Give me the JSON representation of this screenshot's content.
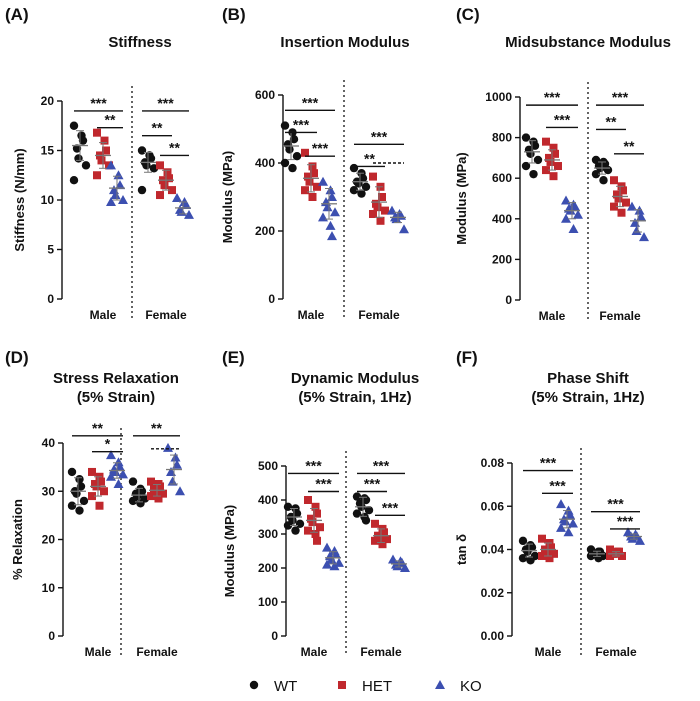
{
  "legend": {
    "items": [
      {
        "label": "WT",
        "color": "#111111",
        "shape": "circle"
      },
      {
        "label": "HET",
        "color": "#c0282d",
        "shape": "square"
      },
      {
        "label": "KO",
        "color": "#3c4fb0",
        "shape": "triangle"
      }
    ]
  },
  "chart_data": [
    {
      "type": "scatter",
      "letter": "(A)",
      "title": [
        "Stiffness"
      ],
      "ylabel": "Stiffness  (N/mm)",
      "ylim": [
        0,
        20
      ],
      "yticks": [
        0,
        5,
        10,
        15,
        20
      ],
      "ytick_labels": [
        "0",
        "5",
        "10",
        "15",
        "20"
      ],
      "groups": [
        {
          "label": "Male",
          "series": [
            {
              "name": "WT",
              "values": [
                17.5,
                16.5,
                16.0,
                15.2,
                14.2,
                13.5,
                12.0
              ],
              "mean": 15.5,
              "sd": 1.5
            },
            {
              "name": "HET",
              "values": [
                16.8,
                16.0,
                15.0,
                14.5,
                14.0,
                13.5,
                12.5
              ],
              "mean": 14.5,
              "sd": 1.3
            },
            {
              "name": "KO",
              "values": [
                13.5,
                12.5,
                11.5,
                11.0,
                10.5,
                10.0,
                9.8
              ],
              "mean": 11.2,
              "sd": 1.2
            }
          ]
        },
        {
          "label": "Female",
          "series": [
            {
              "name": "WT",
              "values": [
                15.0,
                14.5,
                14.2,
                13.8,
                13.5,
                13.2,
                11.0
              ],
              "mean": 13.8,
              "sd": 1.0
            },
            {
              "name": "HET",
              "values": [
                13.5,
                12.8,
                12.2,
                12.0,
                11.5,
                11.0,
                10.5
              ],
              "mean": 12.0,
              "sd": 1.0
            },
            {
              "name": "KO",
              "values": [
                10.2,
                9.8,
                9.5,
                9.0,
                8.8,
                8.5
              ],
              "mean": 9.2,
              "sd": 0.6
            }
          ]
        }
      ],
      "significance": [
        {
          "group": 0,
          "from": 0,
          "to": 2,
          "label": "***",
          "y": 19.0
        },
        {
          "group": 0,
          "from": 1,
          "to": 2,
          "label": "**",
          "y": 17.3
        },
        {
          "group": 1,
          "from": 0,
          "to": 2,
          "label": "***",
          "y": 19.0
        },
        {
          "group": 1,
          "from": 0,
          "to": 1,
          "label": "**",
          "y": 16.5
        },
        {
          "group": 1,
          "from": 1,
          "to": 2,
          "label": "**",
          "y": 14.5
        }
      ]
    },
    {
      "type": "scatter",
      "letter": "(B)",
      "title": [
        "Insertion Modulus"
      ],
      "ylabel": "Modulus  (MPa)",
      "ylim": [
        0,
        600
      ],
      "yticks": [
        0,
        200,
        400,
        600
      ],
      "ytick_labels": [
        "0",
        "200",
        "400",
        "600"
      ],
      "groups": [
        {
          "label": "Male",
          "series": [
            {
              "name": "WT",
              "values": [
                510,
                490,
                470,
                455,
                440,
                420,
                400,
                385
              ],
              "mean": 450,
              "sd": 40
            },
            {
              "name": "HET",
              "values": [
                430,
                390,
                370,
                360,
                345,
                330,
                320,
                300
              ],
              "mean": 355,
              "sd": 40
            },
            {
              "name": "KO",
              "values": [
                345,
                320,
                300,
                285,
                270,
                255,
                240,
                215,
                185
              ],
              "mean": 280,
              "sd": 45
            }
          ]
        },
        {
          "label": "Female",
          "series": [
            {
              "name": "WT",
              "values": [
                385,
                370,
                355,
                345,
                340,
                330,
                320,
                310
              ],
              "mean": 345,
              "sd": 25
            },
            {
              "name": "HET",
              "values": [
                360,
                330,
                300,
                280,
                270,
                260,
                250,
                230
              ],
              "mean": 285,
              "sd": 45
            },
            {
              "name": "KO",
              "values": [
                260,
                250,
                245,
                240,
                235,
                205
              ],
              "mean": 240,
              "sd": 15
            }
          ]
        }
      ],
      "significance": [
        {
          "group": 0,
          "from": 0,
          "to": 2,
          "label": "***",
          "y": 555
        },
        {
          "group": 0,
          "from": 0,
          "to": 1,
          "label": "***",
          "y": 490
        },
        {
          "group": 0,
          "from": 1,
          "to": 2,
          "label": "***",
          "y": 420
        },
        {
          "group": 1,
          "from": 0,
          "to": 2,
          "label": "***",
          "y": 455
        },
        {
          "group": 1,
          "from": 0,
          "to": 1,
          "label": "**",
          "y": 390
        },
        {
          "group": 1,
          "from": 1,
          "to": 2,
          "label": "",
          "y": 400,
          "dashed": true
        }
      ]
    },
    {
      "type": "scatter",
      "letter": "(C)",
      "title": [
        "Midsubstance Modulus"
      ],
      "ylabel": "Modulus  (MPa)",
      "ylim": [
        0,
        1000
      ],
      "yticks": [
        0,
        200,
        400,
        600,
        800,
        1000
      ],
      "ytick_labels": [
        "0",
        "200",
        "400",
        "600",
        "800",
        "1000"
      ],
      "groups": [
        {
          "label": "Male",
          "series": [
            {
              "name": "WT",
              "values": [
                800,
                780,
                760,
                740,
                720,
                690,
                660,
                620
              ],
              "mean": 730,
              "sd": 55
            },
            {
              "name": "HET",
              "values": [
                780,
                750,
                720,
                700,
                680,
                660,
                640,
                610
              ],
              "mean": 690,
              "sd": 50
            },
            {
              "name": "KO",
              "values": [
                490,
                470,
                460,
                450,
                440,
                420,
                400,
                350
              ],
              "mean": 440,
              "sd": 40
            }
          ]
        },
        {
          "label": "Female",
          "series": [
            {
              "name": "WT",
              "values": [
                690,
                680,
                670,
                660,
                650,
                640,
                620,
                590
              ],
              "mean": 650,
              "sd": 30
            },
            {
              "name": "HET",
              "values": [
                590,
                560,
                540,
                520,
                500,
                480,
                460,
                430
              ],
              "mean": 510,
              "sd": 50
            },
            {
              "name": "KO",
              "values": [
                460,
                440,
                410,
                380,
                340,
                310
              ],
              "mean": 390,
              "sd": 55
            }
          ]
        }
      ],
      "significance": [
        {
          "group": 0,
          "from": 0,
          "to": 2,
          "label": "***",
          "y": 960
        },
        {
          "group": 0,
          "from": 1,
          "to": 2,
          "label": "***",
          "y": 850
        },
        {
          "group": 1,
          "from": 0,
          "to": 2,
          "label": "***",
          "y": 960
        },
        {
          "group": 1,
          "from": 0,
          "to": 1,
          "label": "**",
          "y": 840
        },
        {
          "group": 1,
          "from": 1,
          "to": 2,
          "label": "**",
          "y": 720
        }
      ]
    },
    {
      "type": "scatter",
      "letter": "(D)",
      "title": [
        "Stress Relaxation",
        "(5%  Strain)"
      ],
      "ylabel": "% Relaxation",
      "ylim": [
        0,
        40
      ],
      "yticks": [
        0,
        10,
        20,
        30,
        40
      ],
      "ytick_labels": [
        "0",
        "10",
        "20",
        "30",
        "40"
      ],
      "groups": [
        {
          "label": "Male",
          "series": [
            {
              "name": "WT",
              "values": [
                34.0,
                32.5,
                31.0,
                30.0,
                29.5,
                28.0,
                27.0,
                26.0
              ],
              "mean": 30.0,
              "sd": 2.8
            },
            {
              "name": "HET",
              "values": [
                34.0,
                33.0,
                32.0,
                31.5,
                31.0,
                30.0,
                29.0,
                27.0
              ],
              "mean": 31.0,
              "sd": 2.0
            },
            {
              "name": "KO",
              "values": [
                37.5,
                36.0,
                35.0,
                34.5,
                34.0,
                33.5,
                33.0,
                31.5
              ],
              "mean": 34.3,
              "sd": 1.6
            }
          ]
        },
        {
          "label": "Female",
          "series": [
            {
              "name": "WT",
              "values": [
                32.0,
                30.5,
                30.0,
                29.5,
                29.0,
                28.5,
                28.0,
                27.5
              ],
              "mean": 29.2,
              "sd": 1.4
            },
            {
              "name": "HET",
              "values": [
                32.0,
                31.5,
                31.0,
                30.5,
                30.0,
                29.5,
                29.0,
                28.5
              ],
              "mean": 30.2,
              "sd": 1.2
            },
            {
              "name": "KO",
              "values": [
                39.0,
                37.0,
                35.5,
                34.0,
                32.0,
                30.0
              ],
              "mean": 34.5,
              "sd": 3.0
            }
          ]
        }
      ],
      "significance": [
        {
          "group": 0,
          "from": 0,
          "to": 2,
          "label": "**",
          "y": 41.5
        },
        {
          "group": 0,
          "from": 1,
          "to": 2,
          "label": "*",
          "y": 38.2
        },
        {
          "group": 1,
          "from": 0,
          "to": 2,
          "label": "**",
          "y": 41.5
        },
        {
          "group": 1,
          "from": 1,
          "to": 2,
          "label": "",
          "y": 38.8,
          "dashed": true
        }
      ]
    },
    {
      "type": "scatter",
      "letter": "(E)",
      "title": [
        "Dynamic Modulus",
        "(5% Strain, 1Hz)"
      ],
      "ylabel": "Modulus (MPa)",
      "ylim": [
        0,
        500
      ],
      "yticks": [
        0,
        100,
        200,
        300,
        400,
        500
      ],
      "ytick_labels": [
        "0",
        "100",
        "200",
        "300",
        "400",
        "500"
      ],
      "groups": [
        {
          "label": "Male",
          "series": [
            {
              "name": "WT",
              "values": [
                380,
                375,
                360,
                350,
                340,
                330,
                325,
                310
              ],
              "mean": 350,
              "sd": 25
            },
            {
              "name": "HET",
              "values": [
                400,
                380,
                360,
                345,
                335,
                320,
                310,
                300,
                280
              ],
              "mean": 340,
              "sd": 35
            },
            {
              "name": "KO",
              "values": [
                260,
                250,
                240,
                235,
                225,
                215,
                210,
                205
              ],
              "mean": 230,
              "sd": 18
            }
          ]
        },
        {
          "label": "Female",
          "series": [
            {
              "name": "WT",
              "values": [
                410,
                405,
                400,
                390,
                380,
                370,
                360,
                350,
                340
              ],
              "mean": 380,
              "sd": 28
            },
            {
              "name": "HET",
              "values": [
                330,
                315,
                305,
                295,
                290,
                285,
                280,
                270
              ],
              "mean": 295,
              "sd": 20
            },
            {
              "name": "KO",
              "values": [
                225,
                220,
                215,
                210,
                205,
                200
              ],
              "mean": 212,
              "sd": 9
            }
          ]
        }
      ],
      "significance": [
        {
          "group": 0,
          "from": 0,
          "to": 2,
          "label": "***",
          "y": 478
        },
        {
          "group": 0,
          "from": 1,
          "to": 2,
          "label": "***",
          "y": 425
        },
        {
          "group": 1,
          "from": 0,
          "to": 2,
          "label": "***",
          "y": 478
        },
        {
          "group": 1,
          "from": 0,
          "to": 1,
          "label": "***",
          "y": 425
        },
        {
          "group": 1,
          "from": 1,
          "to": 2,
          "label": "***",
          "y": 355
        }
      ]
    },
    {
      "type": "scatter",
      "letter": "(F)",
      "title": [
        "Phase Shift",
        "(5% Strain, 1Hz)"
      ],
      "ylabel": "tan δ",
      "ylim": [
        0,
        0.08
      ],
      "yticks": [
        0,
        0.02,
        0.04,
        0.06,
        0.08
      ],
      "ytick_labels": [
        "0.00",
        "0.02",
        "0.04",
        "0.06",
        "0.08"
      ],
      "groups": [
        {
          "label": "Male",
          "series": [
            {
              "name": "WT",
              "values": [
                0.044,
                0.042,
                0.041,
                0.04,
                0.039,
                0.037,
                0.036,
                0.035
              ],
              "mean": 0.0395,
              "sd": 0.003
            },
            {
              "name": "HET",
              "values": [
                0.045,
                0.043,
                0.041,
                0.04,
                0.039,
                0.038,
                0.037,
                0.036
              ],
              "mean": 0.04,
              "sd": 0.003
            },
            {
              "name": "KO",
              "values": [
                0.061,
                0.058,
                0.056,
                0.054,
                0.053,
                0.052,
                0.05,
                0.048
              ],
              "mean": 0.054,
              "sd": 0.004
            }
          ]
        },
        {
          "label": "Female",
          "series": [
            {
              "name": "WT",
              "values": [
                0.04,
                0.039,
                0.039,
                0.038,
                0.038,
                0.037,
                0.037,
                0.036
              ],
              "mean": 0.038,
              "sd": 0.0012
            },
            {
              "name": "HET",
              "values": [
                0.04,
                0.039,
                0.039,
                0.038,
                0.038,
                0.037,
                0.037
              ],
              "mean": 0.038,
              "sd": 0.001
            },
            {
              "name": "KO",
              "values": [
                0.048,
                0.047,
                0.046,
                0.046,
                0.045,
                0.044
              ],
              "mean": 0.046,
              "sd": 0.0012
            }
          ]
        }
      ],
      "significance": [
        {
          "group": 0,
          "from": 0,
          "to": 2,
          "label": "***",
          "y": 0.0765
        },
        {
          "group": 0,
          "from": 1,
          "to": 2,
          "label": "***",
          "y": 0.066
        },
        {
          "group": 1,
          "from": 0,
          "to": 2,
          "label": "***",
          "y": 0.0575
        },
        {
          "group": 1,
          "from": 1,
          "to": 2,
          "label": "***",
          "y": 0.0495
        }
      ]
    }
  ]
}
